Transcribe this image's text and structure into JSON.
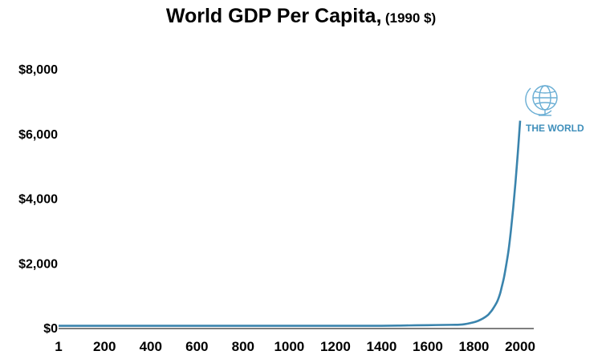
{
  "chart_data": {
    "type": "line",
    "title": "World GDP Per Capita,",
    "subtitle": "(1990 $)",
    "xlabel": "",
    "ylabel": "",
    "x_ticks": [
      "1",
      "200",
      "400",
      "600",
      "800",
      "1000",
      "1200",
      "1400",
      "1600",
      "1800",
      "2000"
    ],
    "y_ticks": [
      "$0",
      "$2,000",
      "$4,000",
      "$6,000",
      "$8,000"
    ],
    "xlim": [
      1,
      2000
    ],
    "ylim": [
      0,
      8000
    ],
    "grid": false,
    "series": [
      {
        "name": "",
        "color": "#3a84ad",
        "x": [
          1,
          200,
          400,
          600,
          800,
          1000,
          1200,
          1400,
          1500,
          1600,
          1700,
          1750,
          1800,
          1820,
          1840,
          1860,
          1870,
          1880,
          1900,
          1913,
          1920,
          1930,
          1940,
          1950,
          1960,
          1970,
          1980,
          1990,
          2000
        ],
        "y": [
          60,
          60,
          60,
          60,
          60,
          60,
          60,
          60,
          70,
          80,
          90,
          100,
          170,
          220,
          290,
          390,
          470,
          560,
          800,
          1050,
          1250,
          1550,
          1950,
          2400,
          3000,
          3700,
          4500,
          5400,
          6400
        ]
      }
    ]
  },
  "logo": {
    "text": "THE WORLD",
    "icon": "globe-icon",
    "color": "#3f8fbb"
  }
}
